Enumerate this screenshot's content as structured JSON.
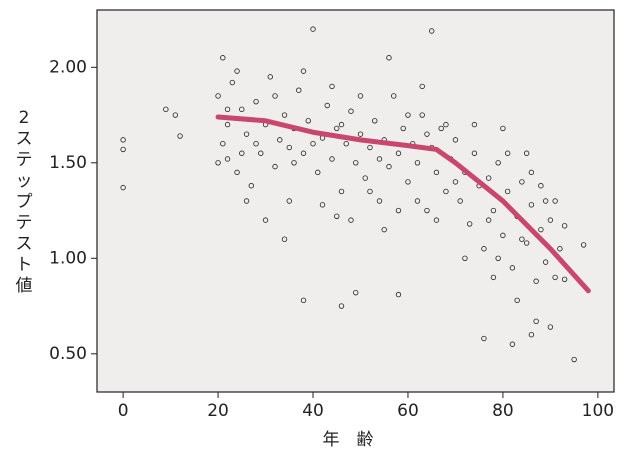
{
  "chart_data": {
    "type": "scatter",
    "x_label": "年　齢",
    "y_label": "2ステップテスト値",
    "xlim": [
      -5.5,
      103.4
    ],
    "ylim": [
      0.3,
      2.3
    ],
    "xticks": [
      0,
      20,
      40,
      60,
      80,
      100
    ],
    "yticks": [
      {
        "value": 0.5,
        "label": "0.50"
      },
      {
        "value": 1,
        "label": "1.00"
      },
      {
        "value": 1.5,
        "label": "1.50"
      },
      {
        "value": 2,
        "label": "2.00"
      }
    ],
    "background": "#efeeec",
    "series": [
      {
        "type": "scatter",
        "color": "#222222",
        "x": [
          0,
          0,
          0,
          9,
          11,
          12,
          40,
          65,
          95,
          97,
          38,
          46,
          49,
          58,
          76,
          82,
          86,
          87,
          90,
          93,
          20,
          21,
          22,
          22,
          23,
          24,
          25,
          26,
          27,
          28,
          29,
          30,
          31,
          32,
          33,
          34,
          35,
          36,
          37,
          38,
          39,
          41,
          42,
          43,
          44,
          45,
          46,
          47,
          48,
          49,
          50,
          51,
          52,
          53,
          54,
          55,
          56,
          57,
          58,
          59,
          60,
          61,
          62,
          63,
          64,
          65,
          66,
          67,
          68,
          69,
          70,
          71,
          72,
          73,
          74,
          75,
          76,
          77,
          78,
          79,
          80,
          81,
          82,
          83,
          84,
          85,
          86,
          87,
          88,
          89,
          90,
          91,
          92,
          80,
          85,
          89,
          83,
          78,
          72,
          68,
          20,
          21,
          24,
          26,
          28,
          30,
          32,
          34,
          36,
          38,
          40,
          42,
          44,
          46,
          48,
          50,
          52,
          54,
          56,
          58,
          60,
          62,
          64,
          66,
          63,
          55,
          45,
          35,
          25,
          22,
          70,
          74,
          77,
          79,
          81,
          84,
          86,
          88,
          91,
          93
        ],
        "values": [
          1.62,
          1.57,
          1.37,
          1.78,
          1.75,
          1.64,
          2.2,
          2.19,
          0.47,
          1.07,
          0.78,
          0.75,
          0.82,
          0.81,
          0.58,
          0.55,
          0.6,
          0.67,
          0.64,
          0.89,
          1.85,
          1.6,
          1.7,
          1.52,
          1.92,
          1.45,
          1.78,
          1.65,
          1.38,
          1.82,
          1.55,
          1.7,
          1.95,
          1.48,
          1.62,
          1.75,
          1.3,
          1.68,
          1.88,
          1.55,
          1.72,
          1.45,
          1.63,
          1.8,
          1.52,
          1.68,
          1.35,
          1.6,
          1.77,
          1.5,
          1.65,
          1.42,
          1.58,
          1.72,
          1.3,
          1.62,
          1.48,
          1.85,
          1.55,
          1.68,
          1.4,
          1.6,
          1.5,
          1.75,
          1.25,
          1.58,
          1.45,
          1.68,
          1.35,
          1.52,
          1.62,
          1.3,
          1.45,
          1.18,
          1.55,
          1.38,
          1.05,
          1.42,
          1.25,
          1.5,
          1.12,
          1.35,
          0.95,
          1.22,
          1.4,
          1.08,
          1.28,
          0.88,
          1.15,
          0.98,
          1.2,
          0.9,
          1.05,
          1.68,
          1.55,
          1.3,
          0.78,
          0.9,
          1.0,
          1.7,
          1.5,
          2.05,
          1.98,
          1.3,
          1.6,
          1.2,
          1.85,
          1.1,
          1.5,
          1.98,
          1.6,
          1.28,
          1.9,
          1.7,
          1.2,
          1.85,
          1.35,
          1.52,
          2.05,
          1.25,
          1.75,
          1.3,
          1.65,
          1.2,
          1.9,
          1.15,
          1.22,
          1.58,
          1.55,
          1.78,
          1.4,
          1.7,
          1.2,
          1.0,
          1.55,
          1.1,
          1.45,
          1.38,
          1.3,
          1.17
        ]
      },
      {
        "type": "line",
        "color": "#c9476f",
        "x": [
          20,
          30,
          40,
          50,
          60,
          66,
          70,
          80,
          90,
          98
        ],
        "values": [
          1.74,
          1.72,
          1.66,
          1.62,
          1.59,
          1.57,
          1.5,
          1.3,
          1.05,
          0.83
        ]
      }
    ]
  }
}
